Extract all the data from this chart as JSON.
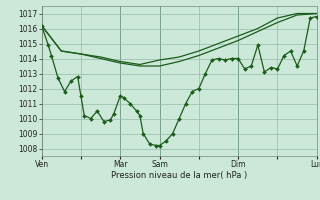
{
  "background_color": "#cce8d8",
  "grid_color": "#99bbaa",
  "line_color": "#1a5c1a",
  "xlabel": "Pression niveau de la mer( hPa )",
  "ylim": [
    1007.5,
    1017.5
  ],
  "yticks": [
    1008,
    1009,
    1010,
    1011,
    1012,
    1013,
    1014,
    1015,
    1016,
    1017
  ],
  "xtick_positions": [
    0,
    12,
    24,
    36,
    48,
    60,
    72,
    84
  ],
  "xtick_labels": [
    "Ven",
    "",
    "Mar",
    "Sam",
    "",
    "Dim",
    "",
    "Lun"
  ],
  "xlim": [
    0,
    84
  ],
  "vlines": [
    0,
    24,
    36,
    60,
    84
  ],
  "line1_x": [
    0,
    6,
    12,
    18,
    24,
    30,
    36,
    42,
    48,
    54,
    60,
    66,
    72,
    78,
    84
  ],
  "line1_y": [
    1016.2,
    1014.5,
    1014.3,
    1014.1,
    1013.8,
    1013.6,
    1013.9,
    1014.1,
    1014.5,
    1015.0,
    1015.5,
    1016.0,
    1016.7,
    1017.0,
    1017.0
  ],
  "line2_x": [
    0,
    6,
    12,
    18,
    24,
    30,
    36,
    42,
    48,
    54,
    60,
    66,
    72,
    78,
    84
  ],
  "line2_y": [
    1016.2,
    1014.5,
    1014.3,
    1014.0,
    1013.7,
    1013.5,
    1013.5,
    1013.8,
    1014.2,
    1014.7,
    1015.2,
    1015.8,
    1016.4,
    1016.9,
    1017.0
  ],
  "main_x": [
    0,
    2,
    3,
    5,
    7,
    9,
    11,
    12,
    13,
    15,
    17,
    19,
    21,
    22,
    24,
    25,
    27,
    29,
    30,
    31,
    33,
    35,
    36,
    38,
    40,
    42,
    44,
    46,
    48,
    50,
    52,
    54,
    56,
    58,
    60,
    62,
    64,
    66,
    68,
    70,
    72,
    74,
    76,
    78,
    80,
    82,
    84
  ],
  "main_y": [
    1016.2,
    1014.9,
    1014.2,
    1012.7,
    1011.8,
    1012.5,
    1012.8,
    1011.5,
    1010.2,
    1010.0,
    1010.5,
    1009.8,
    1009.9,
    1010.3,
    1011.5,
    1011.4,
    1011.0,
    1010.5,
    1010.2,
    1009.0,
    1008.3,
    1008.2,
    1008.2,
    1008.5,
    1009.0,
    1010.0,
    1011.0,
    1011.8,
    1012.0,
    1013.0,
    1013.9,
    1014.0,
    1013.9,
    1014.0,
    1014.0,
    1013.3,
    1013.5,
    1014.9,
    1013.1,
    1013.4,
    1013.3,
    1014.2,
    1014.5,
    1013.5,
    1014.5,
    1016.7,
    1016.8
  ]
}
